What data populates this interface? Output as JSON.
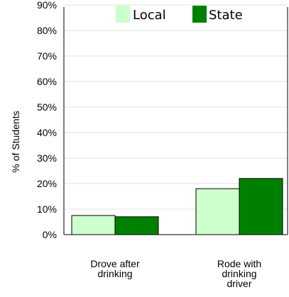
{
  "chart_data": {
    "type": "bar",
    "title": "",
    "xlabel": "",
    "ylabel": "% of Students",
    "ylim": [
      0,
      90
    ],
    "yticks": [
      "0%",
      "10%",
      "20%",
      "30%",
      "40%",
      "50%",
      "60%",
      "70%",
      "80%",
      "90%"
    ],
    "grid": true,
    "legend_position": "top",
    "categories": [
      [
        "Drove after",
        "drinking"
      ],
      [
        "Rode with",
        "drinking",
        "driver"
      ]
    ],
    "series": [
      {
        "name": "Local",
        "color": "#ccffcc",
        "values": [
          7.5,
          18
        ]
      },
      {
        "name": "State",
        "color": "#008000",
        "values": [
          7,
          22
        ]
      }
    ]
  }
}
